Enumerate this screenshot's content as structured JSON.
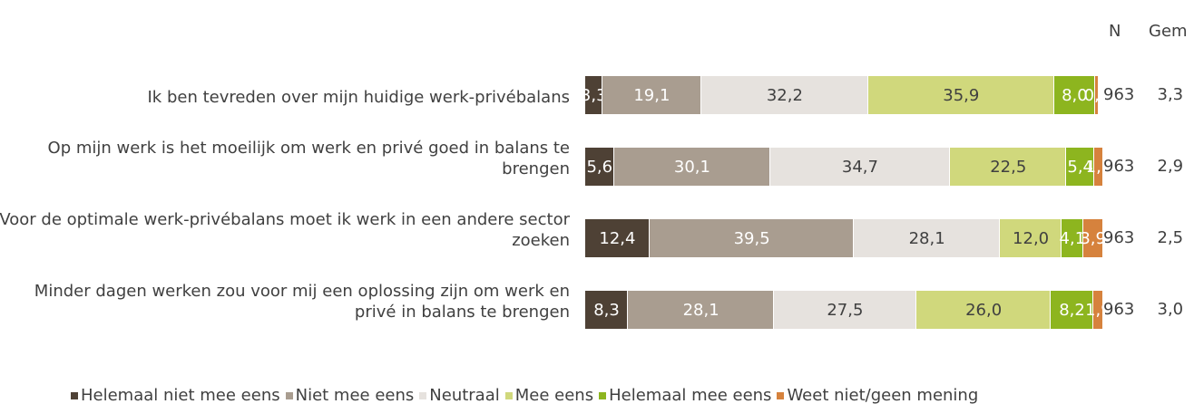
{
  "chart_data": {
    "type": "stacked-bar-horizontal",
    "categories": [
      "Ik ben tevreden over mijn huidige werk-privébalans",
      "Op mijn werk is het moeilijk om werk en privé goed in balans te brengen",
      "Voor de optimale werk-privébalans moet ik werk in een andere sector zoeken",
      "Minder dagen werken zou voor mij een oplossing zijn om werk en privé in balans te brengen"
    ],
    "series": [
      {
        "name": "Helemaal niet mee eens",
        "color": "#4e4135",
        "label_color": "#ffffff",
        "values": [
          3.3,
          5.6,
          12.4,
          8.3
        ],
        "value_labels": [
          "3,3",
          "5,6",
          "12,4",
          "8,3"
        ]
      },
      {
        "name": "Niet mee eens",
        "color": "#a99d90",
        "label_color": "#ffffff",
        "values": [
          19.1,
          30.1,
          39.5,
          28.1
        ],
        "value_labels": [
          "19,1",
          "30,1",
          "39,5",
          "28,1"
        ]
      },
      {
        "name": "Neutraal",
        "color": "#e6e2de",
        "label_color": "#404040",
        "values": [
          32.2,
          34.7,
          28.1,
          27.5
        ],
        "value_labels": [
          "32,2",
          "34,7",
          "28,1",
          "27,5"
        ]
      },
      {
        "name": "Mee eens",
        "color": "#d0d87c",
        "label_color": "#404040",
        "values": [
          35.9,
          22.5,
          12.0,
          26.0
        ],
        "value_labels": [
          "35,9",
          "22,5",
          "12,0",
          "26,0"
        ]
      },
      {
        "name": "Helemaal mee eens",
        "color": "#8db51f",
        "label_color": "#ffffff",
        "values": [
          8.0,
          5.4,
          4.1,
          8.2
        ],
        "value_labels": [
          "8,0",
          "5,4",
          "4,1",
          "8,2"
        ]
      },
      {
        "name": "Weet niet/geen mening",
        "color": "#d6823d",
        "label_color": "#ffffff",
        "values": [
          0.6,
          1.7,
          3.9,
          1.9
        ],
        "value_labels": [
          "0,6",
          "1,7",
          "3,9",
          "1,9"
        ]
      }
    ],
    "n_header": "N",
    "n": [
      963,
      963,
      963,
      963
    ],
    "gem_header": "Gem",
    "gem": [
      3.3,
      2.9,
      2.5,
      3.0
    ],
    "gem_labels": [
      "3,3",
      "2,9",
      "2,5",
      "3,0"
    ]
  }
}
